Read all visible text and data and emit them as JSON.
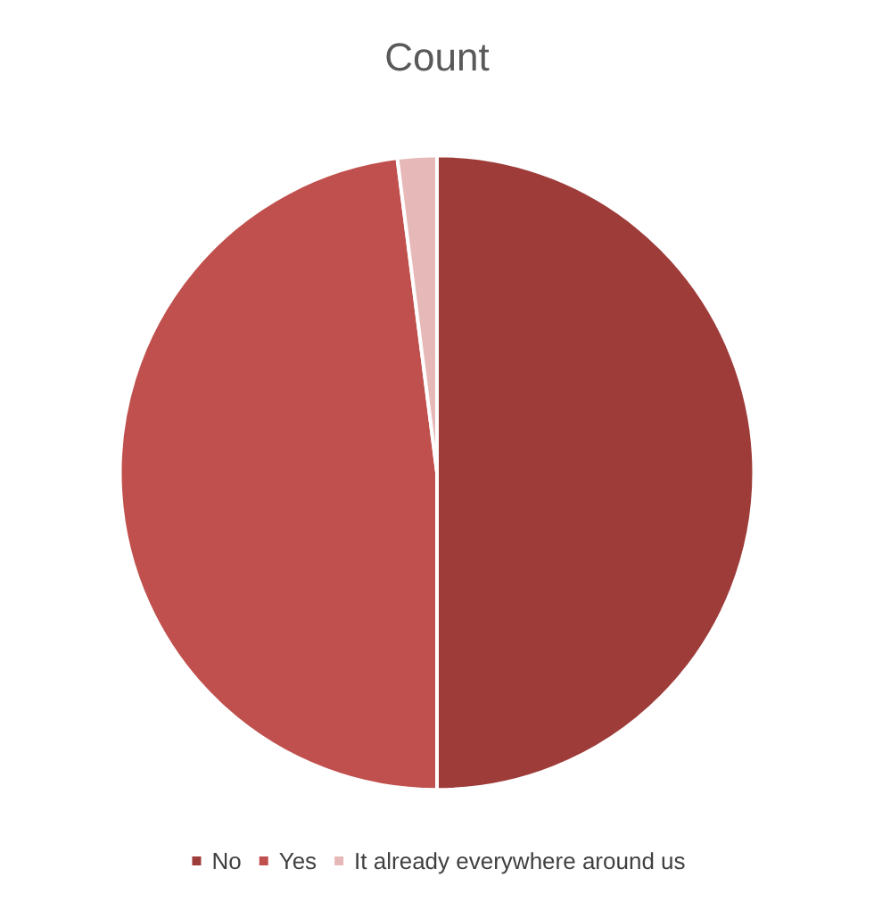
{
  "chart_data": {
    "type": "pie",
    "title": "Count",
    "categories": [
      "No",
      "Yes",
      "It already everywhere around us"
    ],
    "values": [
      50,
      48,
      2
    ],
    "colors": [
      "#9e3c3a",
      "#c0504d",
      "#e6b9b8"
    ],
    "legend": "bottom"
  }
}
